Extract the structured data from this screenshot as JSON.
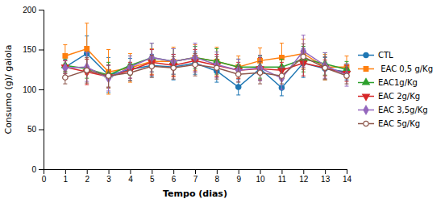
{
  "chart_data": {
    "type": "line",
    "xlabel": "Tempo (dias)",
    "ylabel": "Consumo (g)/ gaiola",
    "x": [
      1,
      2,
      3,
      4,
      5,
      6,
      7,
      8,
      9,
      10,
      11,
      12,
      13,
      14
    ],
    "xlim": [
      0,
      14
    ],
    "xticks": [
      0,
      1,
      2,
      3,
      4,
      5,
      6,
      7,
      8,
      9,
      10,
      11,
      12,
      13,
      14
    ],
    "ylim": [
      0,
      200
    ],
    "yticks": [
      0,
      50,
      100,
      150,
      200
    ],
    "grid": false,
    "legend": "right",
    "series": [
      {
        "name": "CTL",
        "marker": "circle",
        "values": [
          128,
          145,
          118,
          125,
          130,
          128,
          133,
          123,
          103,
          126,
          102,
          133,
          126,
          122
        ],
        "errors": [
          8,
          22,
          22,
          14,
          14,
          16,
          14,
          14,
          10,
          14,
          10,
          18,
          14,
          10
        ]
      },
      {
        "name": " EAC 0,5 g/Kg",
        "marker": "square",
        "values": [
          142,
          151,
          122,
          127,
          135,
          135,
          140,
          135,
          128,
          136,
          140,
          145,
          128,
          128
        ],
        "errors": [
          14,
          32,
          28,
          18,
          16,
          18,
          16,
          18,
          14,
          16,
          18,
          18,
          16,
          14
        ]
      },
      {
        "name": "EAC1g/Kg",
        "marker": "triangle-up",
        "values": [
          130,
          126,
          118,
          130,
          140,
          135,
          140,
          135,
          128,
          128,
          128,
          138,
          132,
          125
        ],
        "errors": [
          8,
          12,
          16,
          12,
          18,
          16,
          14,
          16,
          10,
          14,
          10,
          16,
          14,
          10
        ]
      },
      {
        "name": "EAC 2g/Kg",
        "marker": "triangle-down",
        "values": [
          128,
          122,
          116,
          124,
          134,
          130,
          136,
          130,
          124,
          126,
          124,
          133,
          127,
          120
        ],
        "errors": [
          8,
          16,
          14,
          10,
          16,
          14,
          14,
          14,
          10,
          14,
          10,
          16,
          10,
          10
        ]
      },
      {
        "name": "EAC 3,5g/Kg",
        "marker": "diamond",
        "values": [
          127,
          128,
          114,
          128,
          140,
          135,
          140,
          131,
          124,
          127,
          114,
          148,
          130,
          118
        ],
        "errors": [
          10,
          18,
          16,
          14,
          18,
          16,
          18,
          16,
          14,
          16,
          14,
          20,
          16,
          14
        ]
      },
      {
        "name": "EAC 5g/Kg",
        "marker": "circle-open",
        "values": [
          115,
          124,
          117,
          121,
          129,
          127,
          131,
          127,
          119,
          121,
          117,
          141,
          127,
          117
        ],
        "errors": [
          8,
          16,
          14,
          10,
          14,
          14,
          14,
          14,
          10,
          14,
          10,
          16,
          14,
          10
        ]
      }
    ]
  }
}
